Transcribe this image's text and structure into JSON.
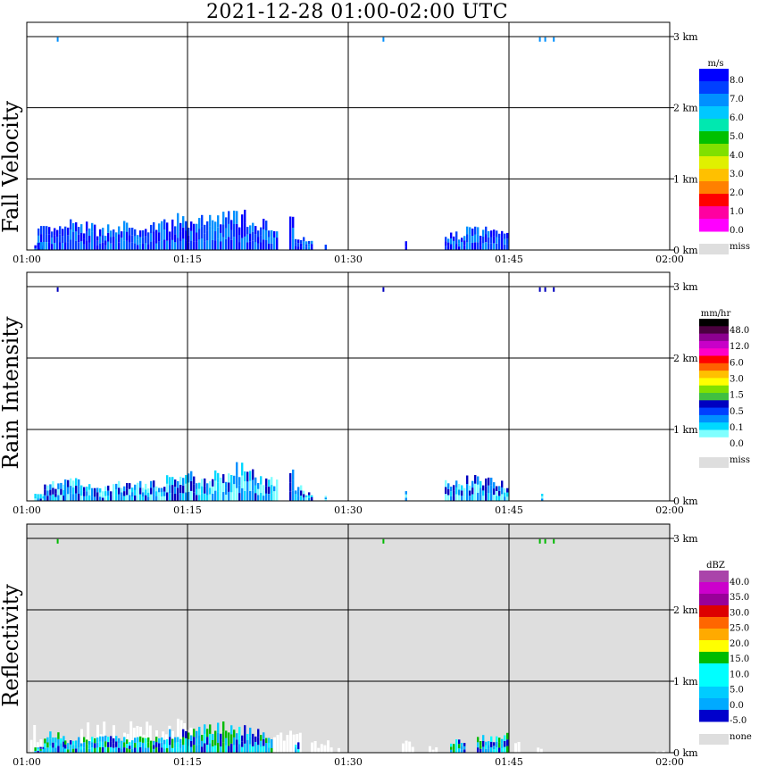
{
  "title": "2021-12-28   01:00-02:00 UTC",
  "chart_data": [
    {
      "type": "heatmap",
      "panel_label": "Fall Velocity",
      "background": "#ffffff",
      "x_ticks": [
        "01:00",
        "01:15",
        "01:30",
        "01:45",
        "02:00"
      ],
      "y_ticks": [
        "0 km",
        "1 km",
        "2 km",
        "3 km"
      ],
      "ylim_km": [
        0,
        3.2
      ],
      "xlim_min": [
        0,
        60
      ],
      "colorbar": {
        "unit": "m/s",
        "colors": [
          "#0000ff",
          "#0040ff",
          "#0090ff",
          "#00c8ff",
          "#00e8b0",
          "#00c000",
          "#80e000",
          "#e0f000",
          "#ffc000",
          "#ff8000",
          "#ff0000",
          "#ff00a0",
          "#ff00ff"
        ],
        "labels": [
          "8.0",
          "7.0",
          "6.0",
          "5.0",
          "4.0",
          "3.0",
          "2.0",
          "1.0",
          "0.0"
        ],
        "missing_label": "miss"
      },
      "dominant_colors": [
        "#0000ff",
        "#0040ff",
        "#0090ff"
      ],
      "echo_columns_min": [
        [
          0.7,
          1.6,
          1.2
        ],
        [
          1.0,
          3.5,
          3.5
        ],
        [
          3.5,
          4.5,
          4.5
        ],
        [
          4.5,
          6.5,
          4.0
        ],
        [
          6.5,
          7.5,
          3.3
        ],
        [
          7.5,
          9.5,
          4.3
        ],
        [
          9.5,
          11.5,
          3.3
        ],
        [
          11.5,
          13.5,
          4.4
        ],
        [
          13.5,
          15.0,
          5.2
        ],
        [
          15.0,
          17.0,
          5.0
        ],
        [
          17.0,
          18.5,
          5.6
        ],
        [
          18.5,
          20.5,
          5.8
        ],
        [
          20.5,
          21.5,
          3.9
        ],
        [
          21.5,
          22.5,
          4.8
        ],
        [
          22.5,
          23.5,
          3.0
        ],
        [
          24.5,
          25.0,
          4.8
        ],
        [
          25.0,
          26.0,
          2.4
        ],
        [
          26.0,
          26.6,
          1.4
        ],
        [
          27.8,
          28.0,
          0.9
        ],
        [
          35.3,
          35.5,
          1.6
        ],
        [
          39.0,
          41.0,
          2.6
        ],
        [
          41.0,
          43.5,
          3.5
        ],
        [
          43.5,
          45.0,
          3.3
        ]
      ],
      "upper_marks_min": [
        2.8,
        33.2,
        47.8,
        48.3,
        49.1
      ]
    },
    {
      "type": "heatmap",
      "panel_label": "Rain Intensity",
      "background": "#ffffff",
      "x_ticks": [
        "01:00",
        "01:15",
        "01:30",
        "01:45",
        "02:00"
      ],
      "y_ticks": [
        "0 km",
        "1 km",
        "2 km",
        "3 km"
      ],
      "ylim_km": [
        0,
        3.2
      ],
      "xlim_min": [
        0,
        60
      ],
      "colorbar": {
        "unit": "mm/hr",
        "colors": [
          "#000000",
          "#4a0040",
          "#8c0090",
          "#c800c8",
          "#ff00c8",
          "#ff0000",
          "#ff6000",
          "#ffc000",
          "#ffff00",
          "#80e000",
          "#40c040",
          "#0000c0",
          "#0040ff",
          "#0090ff",
          "#00d8ff",
          "#80ffff",
          "#ffffff"
        ],
        "labels": [
          "48.0",
          "12.0",
          "6.0",
          "3.0",
          "1.5",
          "0.5",
          "0.1",
          "0.0"
        ],
        "missing_label": "miss"
      },
      "dominant_colors": [
        "#80ffff",
        "#00d8ff",
        "#0090ff",
        "#0000c0"
      ],
      "echo_columns_min": [
        [
          0.7,
          1.6,
          1.6
        ],
        [
          1.6,
          3.5,
          2.8
        ],
        [
          3.5,
          6.0,
          3.4
        ],
        [
          6.0,
          8.5,
          2.4
        ],
        [
          8.5,
          11.0,
          3.0
        ],
        [
          11.0,
          13.0,
          3.0
        ],
        [
          13.0,
          15.0,
          4.2
        ],
        [
          15.0,
          17.0,
          4.3
        ],
        [
          17.0,
          19.0,
          4.5
        ],
        [
          19.0,
          20.5,
          5.5
        ],
        [
          20.5,
          22.0,
          4.5
        ],
        [
          22.0,
          23.5,
          3.5
        ],
        [
          24.5,
          25.0,
          4.5
        ],
        [
          25.0,
          26.0,
          2.5
        ],
        [
          26.0,
          26.6,
          1.4
        ],
        [
          27.8,
          28.0,
          1.0
        ],
        [
          35.3,
          35.5,
          2.0
        ],
        [
          39.0,
          41.0,
          3.0
        ],
        [
          41.0,
          43.5,
          3.7
        ],
        [
          43.5,
          45.0,
          3.2
        ],
        [
          48.0,
          48.2,
          1.2
        ]
      ],
      "upper_marks_min": [
        2.8,
        33.2,
        47.8,
        48.3,
        49.1
      ]
    },
    {
      "type": "heatmap",
      "panel_label": "Reflectivity",
      "background": "#dedede",
      "x_ticks": [
        "01:00",
        "01:15",
        "01:30",
        "01:45",
        "02:00"
      ],
      "y_ticks": [
        "0 km",
        "1 km",
        "2 km",
        "3 km"
      ],
      "ylim_km": [
        0,
        3.2
      ],
      "xlim_min": [
        0,
        60
      ],
      "colorbar": {
        "unit": "dBZ",
        "colors": [
          "#aa44aa",
          "#cc00cc",
          "#990099",
          "#dd0000",
          "#ff6600",
          "#ffaa00",
          "#ffff00",
          "#00bb00",
          "#00ffff",
          "#00ffff",
          "#00ccff",
          "#00aaff",
          "#0000cc"
        ],
        "labels": [
          "40.0",
          "35.0",
          "30.0",
          "25.0",
          "20.0",
          "15.0",
          "10.0",
          "5.0",
          "0.0",
          "-5.0"
        ],
        "missing_label": "none"
      },
      "dominant_colors": [
        "#0000cc",
        "#00aaff",
        "#00ccff",
        "#00ffff",
        "#00bb00"
      ],
      "echo_columns_min": [
        [
          0.7,
          1.6,
          0.8
        ],
        [
          1.6,
          3.5,
          3.0
        ],
        [
          3.5,
          6.0,
          2.2
        ],
        [
          6.0,
          8.5,
          2.5
        ],
        [
          8.5,
          11.0,
          2.4
        ],
        [
          11.0,
          13.0,
          2.6
        ],
        [
          13.0,
          15.0,
          3.4
        ],
        [
          15.0,
          17.0,
          4.0
        ],
        [
          17.0,
          19.0,
          4.4
        ],
        [
          19.0,
          20.5,
          4.2
        ],
        [
          20.5,
          22.0,
          4.0
        ],
        [
          22.0,
          23.0,
          3.2
        ],
        [
          25.0,
          25.5,
          1.6
        ],
        [
          39.5,
          41.0,
          2.0
        ],
        [
          42.0,
          44.0,
          2.5
        ],
        [
          44.0,
          45.0,
          2.8
        ]
      ],
      "clear_air_columns_min": [
        [
          0.3,
          1.5,
          4.0
        ],
        [
          5.0,
          8.0,
          4.4
        ],
        [
          9.0,
          14.0,
          4.7
        ],
        [
          14.0,
          15.5,
          4.9
        ],
        [
          23.0,
          25.5,
          3.2
        ],
        [
          26.5,
          28.5,
          1.8
        ],
        [
          29.0,
          29.3,
          0.8
        ],
        [
          35.0,
          36.0,
          2.5
        ],
        [
          37.5,
          38.2,
          1.2
        ],
        [
          40.0,
          40.5,
          1.6
        ],
        [
          42.0,
          42.5,
          1.0
        ],
        [
          45.5,
          46.0,
          1.7
        ],
        [
          47.6,
          48.0,
          1.6
        ],
        [
          58.7,
          59.5,
          0.3
        ]
      ],
      "upper_marks_min": [
        2.8,
        33.2,
        47.8,
        48.3,
        49.1
      ]
    }
  ]
}
